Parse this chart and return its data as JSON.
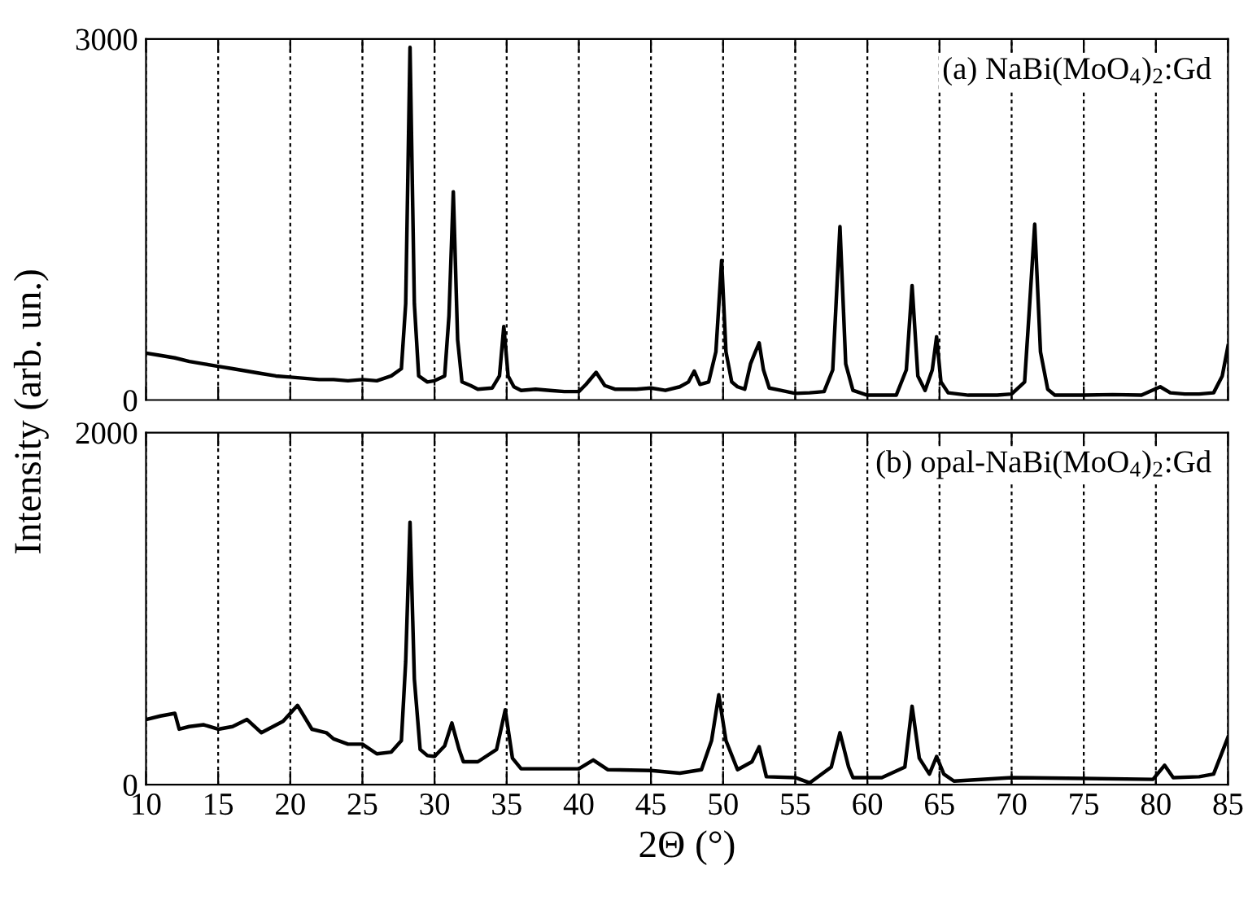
{
  "chart_data": [
    {
      "type": "line",
      "ylabel": "Intensity (arb. un.)",
      "annotations": [
        "(a) NaBi(MoO$_{4}$)$_{2}$:Gd"
      ],
      "xlim": [
        10,
        85
      ],
      "xticks": [
        10,
        15,
        20,
        25,
        30,
        35,
        40,
        45,
        50,
        55,
        60,
        65,
        70,
        75,
        80,
        85
      ],
      "ylim": [
        0,
        3000
      ],
      "yticks": [
        0,
        3000
      ],
      "tick_labels": "y",
      "grid": "x",
      "line_style": "solid",
      "series": [
        {
          "color": "#000000",
          "x": [
            10,
            11,
            12,
            13,
            14,
            15,
            16,
            17,
            18,
            19,
            20,
            21,
            22,
            23,
            24,
            25,
            26,
            27,
            27.7,
            28.0,
            28.3,
            28.6,
            28.9,
            29.5,
            30,
            30.7,
            31.0,
            31.3,
            31.6,
            31.9,
            32.5,
            33,
            34,
            34.5,
            34.8,
            35.1,
            35.5,
            36,
            37,
            38,
            39,
            40,
            40.5,
            41.2,
            41.8,
            42.5,
            44,
            45,
            46,
            47,
            47.6,
            48.0,
            48.4,
            49,
            49.5,
            49.9,
            50.2,
            50.6,
            51,
            51.5,
            51.9,
            52.2,
            52.5,
            52.8,
            53.2,
            54,
            55,
            56,
            57,
            57.6,
            58.1,
            58.5,
            59,
            60,
            61,
            62,
            62.7,
            63.1,
            63.5,
            64,
            64.5,
            64.8,
            65.1,
            65.6,
            67,
            69,
            70,
            70.9,
            71.2,
            71.6,
            72.0,
            72.5,
            73,
            75,
            77,
            79,
            80.3,
            81,
            82,
            83,
            84,
            84.6,
            85
          ],
          "values": [
            390,
            370,
            350,
            320,
            300,
            280,
            260,
            240,
            220,
            200,
            190,
            180,
            170,
            170,
            160,
            170,
            160,
            200,
            260,
            800,
            2930,
            800,
            200,
            150,
            160,
            200,
            700,
            1730,
            500,
            150,
            120,
            90,
            100,
            200,
            610,
            200,
            110,
            80,
            90,
            80,
            70,
            70,
            130,
            230,
            120,
            90,
            90,
            100,
            80,
            110,
            150,
            240,
            130,
            150,
            400,
            1160,
            400,
            150,
            110,
            90,
            300,
            390,
            475,
            250,
            100,
            80,
            55,
            60,
            70,
            250,
            1440,
            300,
            80,
            40,
            40,
            40,
            250,
            950,
            200,
            80,
            250,
            525,
            150,
            60,
            40,
            40,
            50,
            150,
            700,
            1460,
            400,
            90,
            40,
            40,
            45,
            40,
            110,
            60,
            50,
            50,
            60,
            200,
            450
          ]
        }
      ]
    },
    {
      "type": "line",
      "xlabel": "2Θ (°)",
      "annotations": [
        "(b) opal-NaBi(MoO$_{4}$)$_{2}$:Gd"
      ],
      "xlim": [
        10,
        85
      ],
      "xticks": [
        10,
        15,
        20,
        25,
        30,
        35,
        40,
        45,
        50,
        55,
        60,
        65,
        70,
        75,
        80,
        85
      ],
      "ylim": [
        0,
        2000
      ],
      "yticks": [
        0,
        2000
      ],
      "grid": "x",
      "line_style": "solid",
      "series": [
        {
          "color": "#000000",
          "x": [
            10,
            11,
            12,
            12.3,
            13,
            14,
            15,
            16,
            17,
            18,
            19.5,
            20.5,
            21.5,
            22.5,
            23,
            24,
            25,
            26,
            27,
            27.7,
            28.0,
            28.3,
            28.6,
            29.0,
            29.5,
            30,
            30.7,
            31.2,
            31.7,
            32,
            33,
            34.3,
            34.9,
            35.4,
            36,
            38,
            40,
            41,
            42,
            45,
            47,
            48.5,
            49.2,
            49.7,
            50.2,
            51,
            52.0,
            52.5,
            53,
            55,
            56,
            57.5,
            58.1,
            58.7,
            59,
            61,
            62.6,
            63.1,
            63.6,
            64.3,
            64.8,
            65.3,
            66,
            70,
            75,
            79.8,
            80.6,
            81.2,
            83,
            84,
            85
          ],
          "values": [
            370,
            390,
            405,
            315,
            330,
            340,
            315,
            330,
            370,
            295,
            360,
            450,
            315,
            295,
            260,
            230,
            230,
            175,
            185,
            250,
            700,
            1490,
            600,
            200,
            165,
            160,
            220,
            350,
            200,
            130,
            130,
            200,
            425,
            150,
            90,
            90,
            90,
            140,
            85,
            80,
            65,
            85,
            250,
            510,
            250,
            85,
            130,
            215,
            45,
            40,
            10,
            100,
            295,
            100,
            40,
            40,
            100,
            445,
            150,
            60,
            160,
            60,
            20,
            40,
            35,
            30,
            110,
            40,
            45,
            60,
            270
          ]
        }
      ]
    }
  ]
}
